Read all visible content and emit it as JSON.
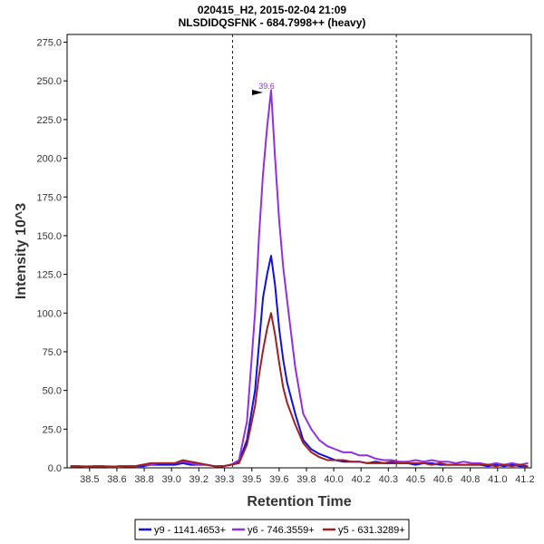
{
  "chart_data": {
    "type": "line",
    "title": "020415_H2, 2015-02-04 21:09",
    "subtitle": "NLSDIDQSFNK - 684.7998++ (heavy)",
    "xlabel": "Retention Time",
    "ylabel": "Intensity 10^3",
    "xlim": [
      38.33,
      41.22
    ],
    "ylim": [
      0,
      280
    ],
    "x_ticks": [
      "38.5",
      "38.6",
      "38.8",
      "39.0",
      "39.2",
      "39.3",
      "39.5",
      "39.6",
      "39.8",
      "40.0",
      "40.2",
      "40.3",
      "40.5",
      "40.6",
      "40.8",
      "41.0",
      "41.2"
    ],
    "x_tick_values": [
      38.47,
      38.64,
      38.81,
      38.98,
      39.15,
      39.31,
      39.48,
      39.65,
      39.82,
      39.99,
      40.16,
      40.33,
      40.5,
      40.67,
      40.84,
      41.01,
      41.18
    ],
    "y_ticks": [
      "0.0",
      "25.0",
      "50.0",
      "75.0",
      "100.0",
      "125.0",
      "150.0",
      "175.0",
      "200.0",
      "225.0",
      "250.0",
      "275.0"
    ],
    "y_tick_values": [
      0,
      25,
      50,
      75,
      100,
      125,
      150,
      175,
      200,
      225,
      250,
      275
    ],
    "boundaries": [
      39.36,
      40.38
    ],
    "peak": {
      "x": 39.6,
      "y": 244,
      "label": "39.6"
    },
    "x": [
      38.35,
      38.4,
      38.45,
      38.5,
      38.55,
      38.6,
      38.65,
      38.7,
      38.75,
      38.8,
      38.85,
      38.9,
      38.95,
      39.0,
      39.05,
      39.1,
      39.15,
      39.2,
      39.25,
      39.3,
      39.35,
      39.4,
      39.45,
      39.5,
      39.525,
      39.55,
      39.575,
      39.6,
      39.625,
      39.65,
      39.675,
      39.7,
      39.75,
      39.8,
      39.85,
      39.9,
      39.95,
      40.0,
      40.05,
      40.1,
      40.15,
      40.2,
      40.25,
      40.3,
      40.35,
      40.4,
      40.45,
      40.5,
      40.55,
      40.6,
      40.65,
      40.7,
      40.75,
      40.8,
      40.85,
      40.9,
      40.95,
      41.0,
      41.05,
      41.1,
      41.15,
      41.2
    ],
    "series": [
      {
        "name": "y9 - 1141.4653+",
        "color": "#1010e0",
        "values": [
          1,
          1,
          0.5,
          1,
          1,
          0.5,
          1,
          1,
          1,
          1,
          2,
          2,
          2,
          2,
          3,
          2,
          2,
          2,
          1,
          1,
          2,
          4,
          18,
          50,
          80,
          110,
          125,
          137,
          118,
          90,
          70,
          55,
          35,
          18,
          12,
          9,
          7,
          5,
          4,
          4,
          4,
          3,
          4,
          3,
          3,
          3,
          3,
          2,
          3,
          3,
          2,
          2,
          2,
          2,
          2,
          2,
          1,
          2,
          1,
          2,
          1,
          1
        ]
      },
      {
        "name": "y6 - 746.3559+",
        "color": "#9030e0",
        "values": [
          1,
          1,
          1,
          1,
          1,
          1,
          0.5,
          1,
          1,
          2,
          2,
          3,
          3,
          3,
          4,
          3,
          2,
          2,
          1,
          1,
          2,
          5,
          30,
          100,
          150,
          190,
          220,
          244,
          200,
          160,
          130,
          108,
          65,
          35,
          25,
          18,
          14,
          12,
          10,
          10,
          8,
          8,
          6,
          5,
          5,
          4,
          4,
          5,
          4,
          5,
          4,
          4,
          3,
          4,
          3,
          3,
          2,
          3,
          2,
          3,
          2,
          3
        ]
      },
      {
        "name": "y5 - 631.3289+",
        "color": "#a02020",
        "values": [
          1,
          1,
          0.5,
          1,
          1,
          0.5,
          1,
          1,
          1,
          2,
          3,
          3,
          3,
          3,
          5,
          4,
          3,
          2,
          1,
          1,
          2,
          3,
          15,
          40,
          60,
          76,
          90,
          100,
          86,
          68,
          52,
          42,
          28,
          16,
          10,
          7,
          5,
          5,
          5,
          4,
          4,
          3,
          3,
          3,
          4,
          3,
          3,
          3,
          3,
          2,
          3,
          2,
          2,
          2,
          2,
          2,
          2,
          1,
          2,
          1,
          2,
          1
        ]
      }
    ]
  }
}
